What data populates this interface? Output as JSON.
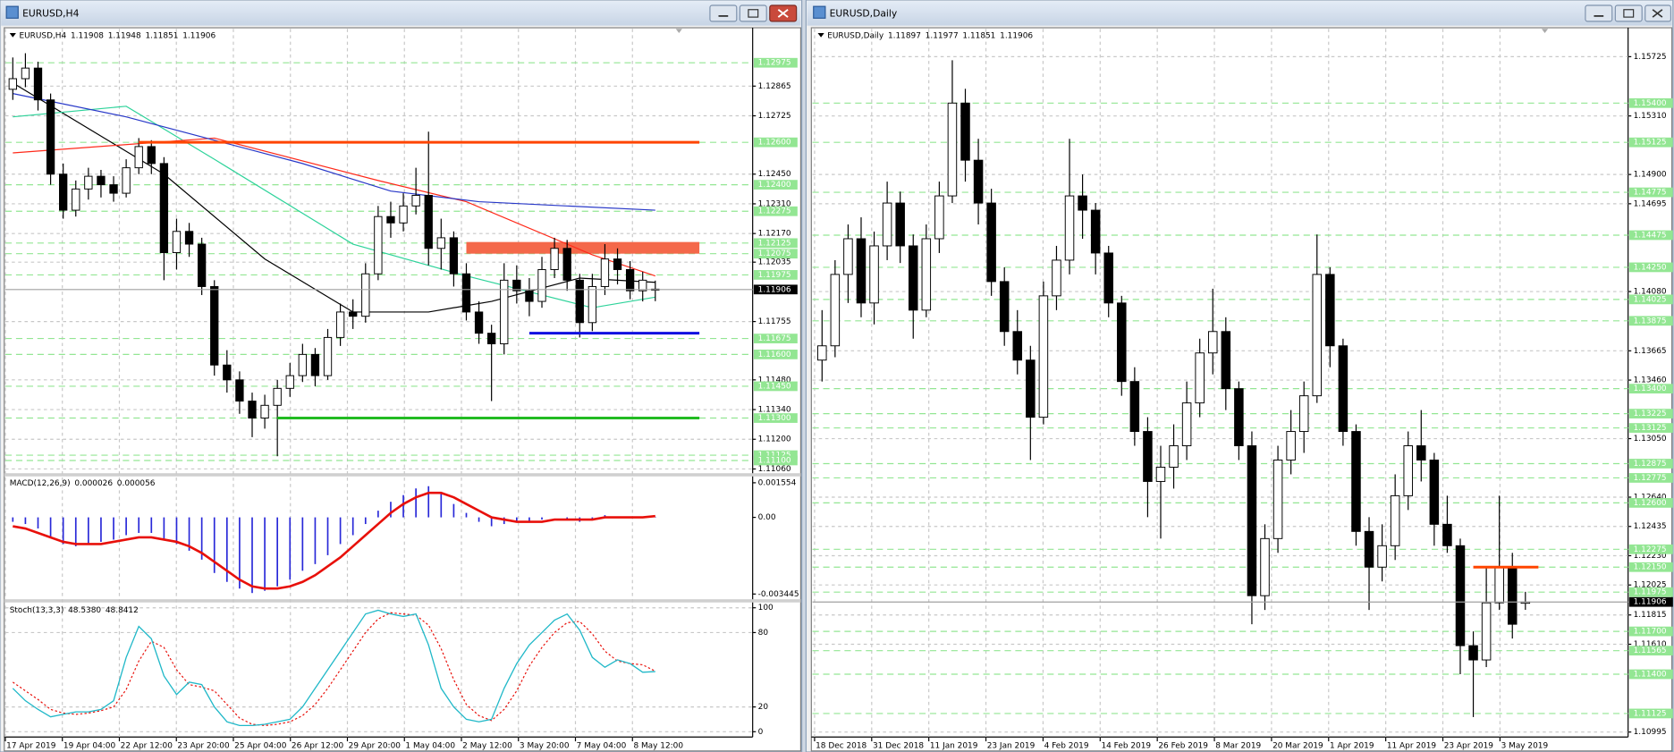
{
  "windows": [
    {
      "title": "EURUSD,H4",
      "ylim": [
        1.1104,
        1.13135
      ],
      "yticks": [
        1.12865,
        1.12725,
        {
          "value": 1.1245,
          "label": "1.12450"
        },
        {
          "value": 1.1231,
          "label": "1.12310"
        },
        {
          "value": 1.1217,
          "label": "1.12170"
        },
        1.12035,
        1.11755,
        {
          "value": 1.1148,
          "label": "1.11480"
        },
        {
          "value": 1.1134,
          "label": "1.11340"
        },
        {
          "value": 1.112,
          "label": "1.11200"
        },
        {
          "value": 1.1106,
          "label": "1.11060"
        }
      ],
      "levels": [
        1.12975,
        {
          "value": 1.126,
          "label": "1.12600"
        },
        {
          "value": 1.124,
          "label": "1.12400"
        },
        1.12275,
        1.12125,
        1.12075,
        1.11975,
        1.11675,
        {
          "value": 1.116,
          "label": "1.11600"
        },
        {
          "value": 1.1145,
          "label": "1.11450"
        },
        {
          "value": 1.113,
          "label": "1.11300"
        },
        1.11125,
        {
          "value": 1.111,
          "label": "1.11100"
        }
      ],
      "xlabels": [
        "17 Apr 2019",
        "19 Apr 04:00",
        "22 Apr 12:00",
        "23 Apr 20:00",
        "25 Apr 04:00",
        "26 Apr 12:00",
        "29 Apr 20:00",
        "1 May 04:00",
        "2 May 12:00",
        "3 May 20:00",
        "7 May 04:00",
        "8 May 12:00"
      ],
      "candles": [
        [
          1.1285,
          1.13,
          1.128,
          1.129
        ],
        [
          1.129,
          1.1302,
          1.1286,
          1.1295
        ],
        [
          1.1295,
          1.1298,
          1.1275,
          1.128
        ],
        [
          1.128,
          1.1283,
          1.124,
          1.1245
        ],
        [
          1.1245,
          1.125,
          1.1224,
          1.1228
        ],
        [
          1.1228,
          1.1242,
          1.1225,
          1.1238
        ],
        [
          1.1238,
          1.1248,
          1.1233,
          1.1244
        ],
        [
          1.1244,
          1.1247,
          1.1234,
          1.124
        ],
        [
          1.124,
          1.1244,
          1.1232,
          1.1236
        ],
        [
          1.1236,
          1.1252,
          1.1234,
          1.1248
        ],
        [
          1.1248,
          1.1262,
          1.1245,
          1.1258
        ],
        [
          1.1258,
          1.1261,
          1.1245,
          1.125
        ],
        [
          1.125,
          1.1253,
          1.1195,
          1.1208
        ],
        [
          1.1208,
          1.1224,
          1.12,
          1.1218
        ],
        [
          1.1218,
          1.1222,
          1.1206,
          1.1212
        ],
        [
          1.1212,
          1.1215,
          1.1188,
          1.1192
        ],
        [
          1.1192,
          1.1195,
          1.115,
          1.1155
        ],
        [
          1.1155,
          1.1162,
          1.1142,
          1.1148
        ],
        [
          1.1148,
          1.1152,
          1.1132,
          1.1138
        ],
        [
          1.1138,
          1.1142,
          1.1121,
          1.113
        ],
        [
          1.113,
          1.1141,
          1.1125,
          1.1136
        ],
        [
          1.1136,
          1.1148,
          1.1112,
          1.1144
        ],
        [
          1.1144,
          1.1156,
          1.114,
          1.115
        ],
        [
          1.115,
          1.1165,
          1.1147,
          1.116
        ],
        [
          1.116,
          1.1163,
          1.1145,
          1.115
        ],
        [
          1.115,
          1.1172,
          1.1148,
          1.1168
        ],
        [
          1.1168,
          1.1184,
          1.1164,
          1.118
        ],
        [
          1.118,
          1.1186,
          1.1172,
          1.1178
        ],
        [
          1.1178,
          1.1203,
          1.1175,
          1.1198
        ],
        [
          1.1198,
          1.123,
          1.1195,
          1.1225
        ],
        [
          1.1225,
          1.1232,
          1.1215,
          1.1222
        ],
        [
          1.1222,
          1.1236,
          1.1218,
          1.123
        ],
        [
          1.123,
          1.1248,
          1.1226,
          1.1235
        ],
        [
          1.1235,
          1.1265,
          1.1202,
          1.121
        ],
        [
          1.121,
          1.1224,
          1.12,
          1.1215
        ],
        [
          1.1215,
          1.1218,
          1.1192,
          1.1198
        ],
        [
          1.1198,
          1.1203,
          1.1176,
          1.118
        ],
        [
          1.118,
          1.1185,
          1.1165,
          1.117
        ],
        [
          1.117,
          1.1174,
          1.1138,
          1.1165
        ],
        [
          1.1165,
          1.1203,
          1.116,
          1.1195
        ],
        [
          1.1195,
          1.1202,
          1.1184,
          1.119
        ],
        [
          1.119,
          1.1196,
          1.1178,
          1.1185
        ],
        [
          1.1185,
          1.1206,
          1.1182,
          1.12
        ],
        [
          1.12,
          1.1215,
          1.1196,
          1.121
        ],
        [
          1.121,
          1.1214,
          1.119,
          1.1195
        ],
        [
          1.1195,
          1.1198,
          1.1168,
          1.1175
        ],
        [
          1.1175,
          1.1198,
          1.1171,
          1.1192
        ],
        [
          1.1192,
          1.1212,
          1.1188,
          1.1205
        ],
        [
          1.1205,
          1.121,
          1.1193,
          1.12
        ],
        [
          1.12,
          1.1204,
          1.1186,
          1.119
        ],
        [
          1.119,
          1.1199,
          1.1185,
          1.1195
        ],
        [
          1.11908,
          1.11948,
          1.11851,
          1.11906
        ]
      ],
      "ma": [
        {
          "color": "#000000",
          "x": [
            0,
            12,
            20,
            27,
            33,
            38,
            45,
            51
          ],
          "values": [
            1.1288,
            1.1245,
            1.1205,
            1.118,
            1.118,
            1.1185,
            1.1196,
            1.1194
          ]
        },
        {
          "color": "#2ed39a",
          "x": [
            0,
            9,
            16,
            27,
            36,
            46,
            51
          ],
          "values": [
            1.1272,
            1.1277,
            1.1252,
            1.1212,
            1.1197,
            1.1182,
            1.1187
          ]
        },
        {
          "color": "#ff2a1a",
          "x": [
            0,
            16,
            29,
            36,
            46,
            51
          ],
          "values": [
            1.1255,
            1.1262,
            1.1242,
            1.1232,
            1.1207,
            1.1197
          ]
        },
        {
          "color": "#2838c8",
          "x": [
            0,
            9,
            23,
            30,
            37,
            51
          ],
          "values": [
            1.1283,
            1.1272,
            1.125,
            1.1237,
            1.1232,
            1.1228
          ]
        }
      ],
      "level_lines": [
        {
          "value": 1.126,
          "color": "#ff4500",
          "from": 10,
          "to": 54.5
        },
        {
          "value": 1.117,
          "color": "#1010e0",
          "from": 41,
          "to": 54.5
        },
        {
          "value": 1.113,
          "color": "#22bb22",
          "from": 21,
          "to": 54.5
        }
      ],
      "zones": [
        {
          "low": 1.12075,
          "high": 1.1213,
          "color": "#f4684a",
          "from": 36,
          "to": 54.5
        }
      ],
      "macd": {
        "name": "MACD(12,26,9)",
        "ylim": [
          -0.00368,
          0.00184
        ],
        "yticks": [
          0.001554,
          {
            "value": 0,
            "label": "0.00"
          },
          -0.003445
        ],
        "histogram": [
          -0.0002,
          -0.0003,
          -0.0005,
          -0.0009,
          -0.0012,
          -0.0013,
          -0.0012,
          -0.0011,
          -0.001,
          -0.0008,
          -0.0007,
          -0.0007,
          -0.001,
          -0.0012,
          -0.0015,
          -0.0019,
          -0.0025,
          -0.0029,
          -0.0032,
          -0.0034,
          -0.0033,
          -0.0031,
          -0.0028,
          -0.0024,
          -0.0021,
          -0.0017,
          -0.0012,
          -0.0008,
          -0.0003,
          0.0003,
          0.0007,
          0.001,
          0.0013,
          0.0014,
          0.0011,
          0.0006,
          0.0002,
          -0.0002,
          -0.0004,
          -0.0003,
          -0.0002,
          -0.0002,
          -0.0001,
          0,
          -0.0001,
          -0.0002,
          -0.0001,
          0.0001,
          0,
          0,
          0,
          2.6e-05
        ],
        "signal": [
          -0.0004,
          -0.0005,
          -0.0007,
          -0.0009,
          -0.0011,
          -0.0012,
          -0.0012,
          -0.0012,
          -0.0011,
          -0.001,
          -0.0009,
          -0.0009,
          -0.001,
          -0.0011,
          -0.0013,
          -0.0016,
          -0.002,
          -0.0024,
          -0.0028,
          -0.0031,
          -0.0032,
          -0.0032,
          -0.0031,
          -0.0029,
          -0.0026,
          -0.0022,
          -0.0018,
          -0.0013,
          -0.0008,
          -0.0003,
          0.0002,
          0.0006,
          0.0009,
          0.0011,
          0.0011,
          0.0009,
          0.0006,
          0.0003,
          0,
          -0.0001,
          -0.0002,
          -0.0002,
          -0.0002,
          -0.0001,
          -0.0001,
          -0.0001,
          -0.0001,
          0,
          0,
          0,
          0,
          5.6e-05
        ]
      },
      "stoch": {
        "name": "Stoch(13,3,3)",
        "ylim": [
          -4.3,
          104.3
        ],
        "yticks": [
          100,
          80,
          20,
          0
        ],
        "main_last_label": "48.5380",
        "main": [
          35,
          25,
          18,
          12,
          14,
          16,
          16,
          18,
          25,
          60,
          85,
          75,
          45,
          30,
          40,
          38,
          20,
          8,
          5,
          5,
          6,
          8,
          10,
          20,
          35,
          50,
          65,
          80,
          95,
          98,
          95,
          93,
          95,
          70,
          35,
          20,
          10,
          8,
          10,
          35,
          55,
          70,
          80,
          90,
          95,
          82,
          60,
          52,
          58,
          55,
          48,
          48.538
        ],
        "signal": [
          40,
          33,
          26,
          18,
          15,
          14,
          15,
          17,
          20,
          34,
          57,
          73,
          68,
          50,
          38,
          36,
          33,
          22,
          11,
          6,
          5,
          6,
          8,
          13,
          22,
          35,
          50,
          65,
          80,
          91,
          96,
          95,
          94,
          86,
          67,
          42,
          22,
          13,
          9,
          18,
          33,
          53,
          68,
          80,
          88,
          89,
          79,
          65,
          57,
          55,
          54,
          48.8412
        ]
      }
    },
    {
      "title": "EURUSD,Daily",
      "ylim": [
        1.1096,
        1.1592
      ],
      "yticks": [
        1.15725,
        {
          "value": 1.1531,
          "label": "1.15310"
        },
        {
          "value": 1.149,
          "label": "1.14900"
        },
        1.14695,
        {
          "value": 1.1408,
          "label": "1.14080"
        },
        1.13665,
        {
          "value": 1.1346,
          "label": "1.13460"
        },
        {
          "value": 1.1305,
          "label": "1.13050"
        },
        {
          "value": 1.1264,
          "label": "1.12640"
        },
        1.12435,
        {
          "value": 1.1223,
          "label": "1.12230"
        },
        1.12025,
        1.11815,
        {
          "value": 1.1161,
          "label": "1.11610"
        },
        1.10995
      ],
      "levels": [
        {
          "value": 1.154,
          "label": "1.15400"
        },
        1.15125,
        1.14775,
        1.14475,
        {
          "value": 1.1425,
          "label": "1.14250"
        },
        1.14025,
        1.13875,
        {
          "value": 1.134,
          "label": "1.13400"
        },
        1.13225,
        1.13125,
        1.12875,
        1.12775,
        {
          "value": 1.126,
          "label": "1.12600"
        },
        1.12275,
        {
          "value": 1.1215,
          "label": "1.12150"
        },
        1.11975,
        {
          "value": 1.117,
          "label": "1.11700"
        },
        1.11565,
        {
          "value": 1.114,
          "label": "1.11400"
        },
        1.11125
      ],
      "xlabels": [
        "18 Dec 2018",
        "31 Dec 2018",
        "11 Jan 2019",
        "23 Jan 2019",
        "4 Feb 2019",
        "14 Feb 2019",
        "26 Feb 2019",
        "8 Mar 2019",
        "20 Mar 2019",
        "1 Apr 2019",
        "11 Apr 2019",
        "23 Apr 2019",
        "3 May 2019"
      ],
      "candles": [
        [
          1.136,
          1.1395,
          1.1345,
          1.137
        ],
        [
          1.137,
          1.143,
          1.1362,
          1.142
        ],
        [
          1.142,
          1.1455,
          1.14,
          1.1445
        ],
        [
          1.1445,
          1.146,
          1.139,
          1.14
        ],
        [
          1.14,
          1.145,
          1.1385,
          1.144
        ],
        [
          1.144,
          1.1485,
          1.143,
          1.147
        ],
        [
          1.147,
          1.1478,
          1.1428,
          1.144
        ],
        [
          1.144,
          1.1448,
          1.1375,
          1.1395
        ],
        [
          1.1395,
          1.1455,
          1.139,
          1.1445
        ],
        [
          1.1445,
          1.1485,
          1.1435,
          1.1475
        ],
        [
          1.1475,
          1.157,
          1.147,
          1.154
        ],
        [
          1.154,
          1.155,
          1.1485,
          1.15
        ],
        [
          1.15,
          1.1515,
          1.1455,
          1.147
        ],
        [
          1.147,
          1.148,
          1.1405,
          1.1415
        ],
        [
          1.1415,
          1.1425,
          1.137,
          1.138
        ],
        [
          1.138,
          1.1395,
          1.135,
          1.136
        ],
        [
          1.136,
          1.137,
          1.129,
          1.132
        ],
        [
          1.132,
          1.1415,
          1.1315,
          1.1405
        ],
        [
          1.1405,
          1.144,
          1.1395,
          1.143
        ],
        [
          1.143,
          1.1515,
          1.142,
          1.1475
        ],
        [
          1.1475,
          1.149,
          1.1445,
          1.1465
        ],
        [
          1.1465,
          1.147,
          1.142,
          1.1435
        ],
        [
          1.1435,
          1.144,
          1.139,
          1.14
        ],
        [
          1.14,
          1.1405,
          1.1335,
          1.1345
        ],
        [
          1.1345,
          1.1355,
          1.13,
          1.131
        ],
        [
          1.131,
          1.132,
          1.125,
          1.1275
        ],
        [
          1.1275,
          1.13,
          1.1235,
          1.1285
        ],
        [
          1.1285,
          1.1315,
          1.127,
          1.13
        ],
        [
          1.13,
          1.1345,
          1.129,
          1.133
        ],
        [
          1.133,
          1.1375,
          1.132,
          1.1365
        ],
        [
          1.1365,
          1.141,
          1.135,
          1.138
        ],
        [
          1.138,
          1.139,
          1.1325,
          1.134
        ],
        [
          1.134,
          1.1345,
          1.129,
          1.13
        ],
        [
          1.13,
          1.131,
          1.1175,
          1.1195
        ],
        [
          1.1195,
          1.1245,
          1.1185,
          1.1235
        ],
        [
          1.1235,
          1.13,
          1.1225,
          1.129
        ],
        [
          1.129,
          1.1325,
          1.128,
          1.131
        ],
        [
          1.131,
          1.1345,
          1.1295,
          1.1335
        ],
        [
          1.1335,
          1.1448,
          1.133,
          1.142
        ],
        [
          1.142,
          1.1425,
          1.1355,
          1.137
        ],
        [
          1.137,
          1.1375,
          1.13,
          1.131
        ],
        [
          1.131,
          1.1315,
          1.123,
          1.124
        ],
        [
          1.124,
          1.125,
          1.1185,
          1.1215
        ],
        [
          1.1215,
          1.1245,
          1.1205,
          1.123
        ],
        [
          1.123,
          1.128,
          1.122,
          1.1265
        ],
        [
          1.1265,
          1.131,
          1.1255,
          1.13
        ],
        [
          1.13,
          1.1325,
          1.1275,
          1.129
        ],
        [
          1.129,
          1.1295,
          1.123,
          1.1245
        ],
        [
          1.1245,
          1.1265,
          1.1225,
          1.123
        ],
        [
          1.123,
          1.1235,
          1.114,
          1.116
        ],
        [
          1.116,
          1.117,
          1.111,
          1.115
        ],
        [
          1.115,
          1.1215,
          1.1145,
          1.119
        ],
        [
          1.119,
          1.1265,
          1.1185,
          1.1215
        ],
        [
          1.1215,
          1.1225,
          1.1165,
          1.1175
        ],
        [
          1.11897,
          1.11977,
          1.11851,
          1.11906
        ]
      ],
      "ma": [],
      "level_lines": [
        {
          "value": 1.1215,
          "color": "#ff4500",
          "from": 50,
          "to": 55
        }
      ],
      "zones": []
    }
  ]
}
